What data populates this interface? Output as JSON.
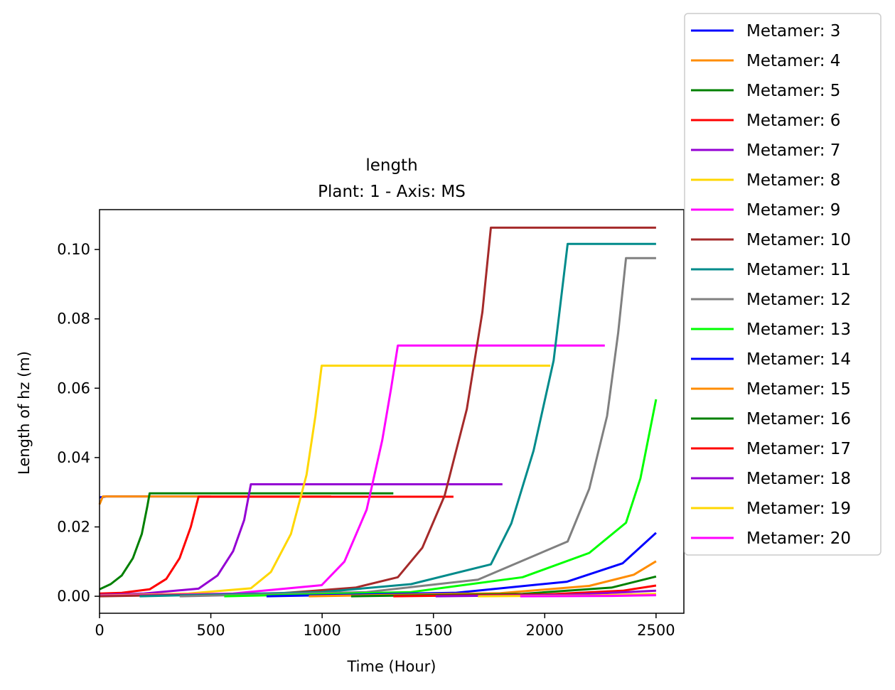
{
  "chart_data": {
    "type": "line",
    "title": "length",
    "subtitle": "Plant: 1 - Axis: MS",
    "xlabel": "Time (Hour)",
    "ylabel": "Length of hz (m)",
    "xlim": [
      0,
      2625
    ],
    "ylim": [
      -0.0049,
      0.1115
    ],
    "xticks": [
      0,
      500,
      1000,
      1500,
      2000,
      2500
    ],
    "yticks": [
      0.0,
      0.02,
      0.04,
      0.06,
      0.08,
      0.1
    ],
    "xtick_labels": [
      "0",
      "500",
      "1000",
      "1500",
      "2000",
      "2500"
    ],
    "ytick_labels": [
      "0.00",
      "0.02",
      "0.04",
      "0.06",
      "0.08",
      "0.10"
    ],
    "grid": false,
    "legend_position": "outside-right",
    "series": [
      {
        "name": "Metamer: 3",
        "color": "#0000ff",
        "points": [
          [
            0,
            0.0285
          ],
          [
            30,
            0.0288
          ],
          [
            500,
            0.0288
          ]
        ]
      },
      {
        "name": "Metamer: 4",
        "color": "#ff8c00",
        "points": [
          [
            0,
            0.0265
          ],
          [
            15,
            0.0288
          ],
          [
            1040,
            0.0288
          ]
        ]
      },
      {
        "name": "Metamer: 5",
        "color": "#008000",
        "points": [
          [
            0,
            0.002
          ],
          [
            50,
            0.0035
          ],
          [
            100,
            0.006
          ],
          [
            150,
            0.011
          ],
          [
            190,
            0.018
          ],
          [
            215,
            0.026
          ],
          [
            225,
            0.0297
          ],
          [
            1320,
            0.0297
          ]
        ]
      },
      {
        "name": "Metamer: 6",
        "color": "#ff0000",
        "points": [
          [
            0,
            0.0008
          ],
          [
            100,
            0.001
          ],
          [
            225,
            0.002
          ],
          [
            300,
            0.005
          ],
          [
            360,
            0.011
          ],
          [
            410,
            0.02
          ],
          [
            445,
            0.0287
          ],
          [
            1590,
            0.0287
          ]
        ]
      },
      {
        "name": "Metamer: 7",
        "color": "#9400d3",
        "points": [
          [
            0,
            0.0004
          ],
          [
            200,
            0.0008
          ],
          [
            445,
            0.0022
          ],
          [
            530,
            0.006
          ],
          [
            600,
            0.013
          ],
          [
            650,
            0.022
          ],
          [
            680,
            0.0323
          ],
          [
            1810,
            0.0323
          ]
        ]
      },
      {
        "name": "Metamer: 8",
        "color": "#ffd700",
        "points": [
          [
            0,
            0.0002
          ],
          [
            400,
            0.0008
          ],
          [
            680,
            0.0023
          ],
          [
            770,
            0.007
          ],
          [
            860,
            0.018
          ],
          [
            930,
            0.035
          ],
          [
            970,
            0.052
          ],
          [
            998,
            0.0665
          ],
          [
            2025,
            0.0665
          ]
        ]
      },
      {
        "name": "Metamer: 9",
        "color": "#ff00ff",
        "points": [
          [
            0,
            0.0001
          ],
          [
            600,
            0.0008
          ],
          [
            998,
            0.0032
          ],
          [
            1100,
            0.01
          ],
          [
            1200,
            0.025
          ],
          [
            1270,
            0.045
          ],
          [
            1310,
            0.06
          ],
          [
            1340,
            0.0723
          ],
          [
            2270,
            0.0723
          ]
        ]
      },
      {
        "name": "Metamer: 10",
        "color": "#a52a2a",
        "points": [
          [
            0,
            0.0
          ],
          [
            800,
            0.0008
          ],
          [
            1150,
            0.0025
          ],
          [
            1340,
            0.0055
          ],
          [
            1450,
            0.014
          ],
          [
            1550,
            0.029
          ],
          [
            1650,
            0.054
          ],
          [
            1720,
            0.082
          ],
          [
            1758,
            0.1063
          ],
          [
            2500,
            0.1063
          ]
        ]
      },
      {
        "name": "Metamer: 11",
        "color": "#008b8b",
        "points": [
          [
            180,
            0.0
          ],
          [
            1000,
            0.0012
          ],
          [
            1400,
            0.0035
          ],
          [
            1758,
            0.0092
          ],
          [
            1850,
            0.021
          ],
          [
            1950,
            0.042
          ],
          [
            2040,
            0.068
          ],
          [
            2103,
            0.1016
          ],
          [
            2500,
            0.1016
          ]
        ]
      },
      {
        "name": "Metamer: 12",
        "color": "#808080",
        "points": [
          [
            360,
            0.0
          ],
          [
            1200,
            0.0012
          ],
          [
            1700,
            0.0048
          ],
          [
            2103,
            0.0158
          ],
          [
            2200,
            0.031
          ],
          [
            2280,
            0.052
          ],
          [
            2330,
            0.076
          ],
          [
            2365,
            0.0975
          ],
          [
            2500,
            0.0975
          ]
        ]
      },
      {
        "name": "Metamer: 13",
        "color": "#00ff00",
        "points": [
          [
            560,
            0.0
          ],
          [
            1400,
            0.0012
          ],
          [
            1900,
            0.0055
          ],
          [
            2200,
            0.0125
          ],
          [
            2365,
            0.0212
          ],
          [
            2430,
            0.034
          ],
          [
            2500,
            0.0568
          ]
        ]
      },
      {
        "name": "Metamer: 14",
        "color": "#0000ff",
        "points": [
          [
            750,
            0.0
          ],
          [
            1600,
            0.001
          ],
          [
            2100,
            0.0042
          ],
          [
            2350,
            0.0095
          ],
          [
            2500,
            0.0183
          ]
        ]
      },
      {
        "name": "Metamer: 15",
        "color": "#ff8c00",
        "points": [
          [
            940,
            0.0
          ],
          [
            1800,
            0.0009
          ],
          [
            2200,
            0.003
          ],
          [
            2400,
            0.0062
          ],
          [
            2500,
            0.0101
          ]
        ]
      },
      {
        "name": "Metamer: 16",
        "color": "#008000",
        "points": [
          [
            1130,
            0.0
          ],
          [
            1900,
            0.0007
          ],
          [
            2300,
            0.0025
          ],
          [
            2500,
            0.0057
          ]
        ]
      },
      {
        "name": "Metamer: 17",
        "color": "#ff0000",
        "points": [
          [
            1320,
            0.0
          ],
          [
            2000,
            0.0005
          ],
          [
            2350,
            0.0016
          ],
          [
            2500,
            0.0031
          ]
        ]
      },
      {
        "name": "Metamer: 18",
        "color": "#9400d3",
        "points": [
          [
            1510,
            0.0
          ],
          [
            2100,
            0.0004
          ],
          [
            2500,
            0.0016
          ]
        ]
      },
      {
        "name": "Metamer: 19",
        "color": "#ffd700",
        "points": [
          [
            1700,
            0.0
          ],
          [
            2200,
            0.0002
          ],
          [
            2500,
            0.0007
          ]
        ]
      },
      {
        "name": "Metamer: 20",
        "color": "#ff00ff",
        "points": [
          [
            1890,
            0.0
          ],
          [
            2300,
            0.0001
          ],
          [
            2500,
            0.0003
          ]
        ]
      }
    ]
  }
}
